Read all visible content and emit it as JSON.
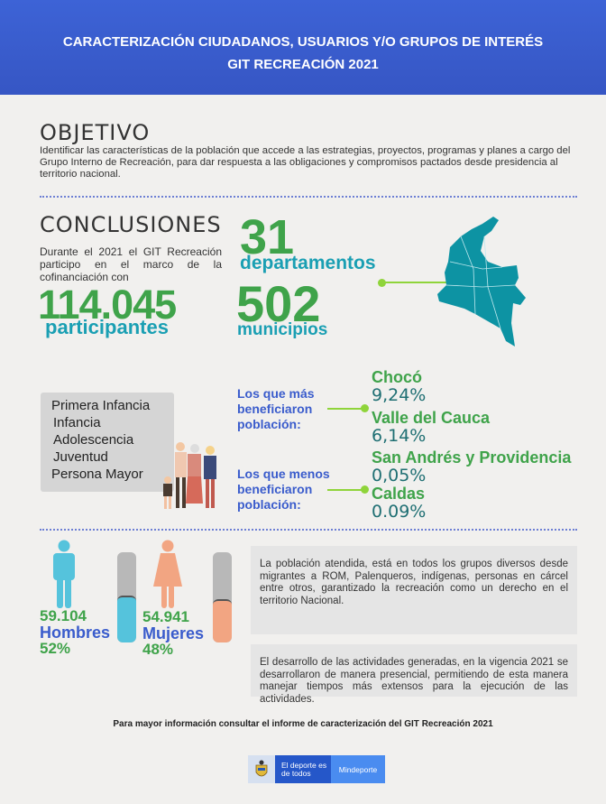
{
  "header": {
    "title_line1": "CARACTERIZACIÓN CIUDADANOS, USUARIOS Y/O GRUPOS DE INTERÉS",
    "title_line2": "GIT RECREACIÓN 2021"
  },
  "objetivo": {
    "heading": "OBJETIVO",
    "text": "Identificar las características de la población que accede a las estrategias, proyectos, programas y planes a cargo del Grupo Interno de Recreación, para dar respuesta a las obligaciones y compromisos pactados desde presidencia al territorio nacional."
  },
  "conclusiones": {
    "heading": "CONCLUSIONES",
    "intro": "Durante el 2021 el GIT Recreación participo en el marco de la cofinanciación con",
    "participants_value": "114.045",
    "participants_label": "participantes",
    "departments_value": "31",
    "departments_label": "departamentos",
    "municipalities_value": "502",
    "municipalities_label": "municipios"
  },
  "groups": [
    "Primera Infancia",
    "Infancia",
    "Adolescencia",
    "Juventud",
    "Persona Mayor"
  ],
  "most": {
    "label": "Los que más beneficiaron población:",
    "items": [
      {
        "name": "Chocó",
        "pct": "9,24%"
      },
      {
        "name": "Valle del Cauca",
        "pct": "6,14%"
      }
    ]
  },
  "least": {
    "label": "Los que menos beneficiaron población:",
    "items": [
      {
        "name": "San Andrés y Providencia",
        "pct": "0,05%"
      },
      {
        "name": "Caldas",
        "pct": "0.09%"
      }
    ]
  },
  "gender": {
    "men": {
      "value": "59.104",
      "label": "Hombres",
      "pct": "52%",
      "fill": 0.52,
      "color": "#55c3dc"
    },
    "women": {
      "value": "54.941",
      "label": "Mujeres",
      "pct": "48%",
      "fill": 0.48,
      "color": "#f2a582"
    }
  },
  "notes": [
    "La población atendida, está en todos los grupos diversos desde migrantes a ROM, Palenqueros, indígenas, personas en cárcel entre otros, garantizado la recreación como un derecho en el territorio Nacional.",
    "El desarrollo de las actividades generadas, en la vigencia 2021 se desarrollaron de manera presencial, permitiendo de esta manera manejar tiempos más extensos para la ejecución de las actividades."
  ],
  "footer": {
    "text": "Para mayor información consultar el informe de caracterización del GIT Recreación 2021",
    "logo_slogan": "El deporte es de todos",
    "logo_brand": "Mindeporte"
  },
  "colors": {
    "green": "#3fa34a",
    "teal": "#1a9fb3",
    "blue": "#3a5ccc",
    "header": "#3656c4"
  }
}
